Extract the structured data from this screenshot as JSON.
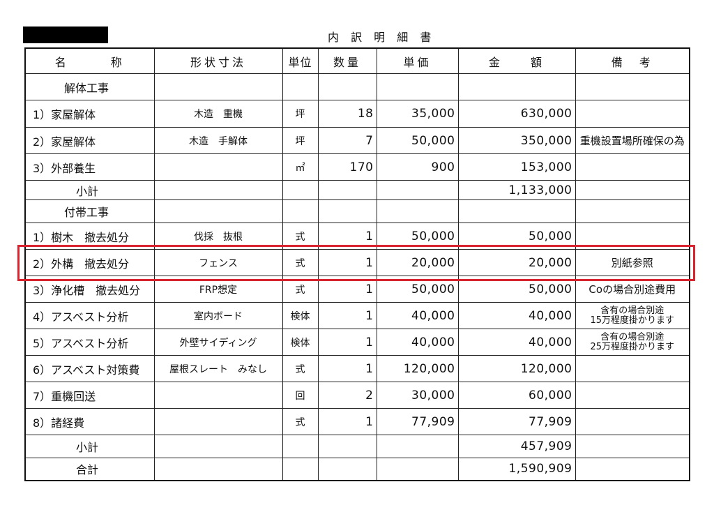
{
  "document": {
    "title": "内 訳 明 細 書",
    "highlight_color": "#d9232e",
    "columns": [
      "名　　　称",
      "形状寸法",
      "単位",
      "数量",
      "単価",
      "金　　額",
      "備　考"
    ],
    "rows": [
      {
        "kind": "section",
        "name": "解体工事",
        "spec": "",
        "unit": "",
        "qty": "",
        "price": "",
        "amount": "",
        "note": ""
      },
      {
        "kind": "item",
        "name": "1）家屋解体",
        "spec": "木造　重機",
        "unit": "坪",
        "qty": "18",
        "price": "35,000",
        "amount": "630,000",
        "note": ""
      },
      {
        "kind": "item",
        "name": "2）家屋解体",
        "spec": "木造　手解体",
        "unit": "坪",
        "qty": "7",
        "price": "50,000",
        "amount": "350,000",
        "note": "重機設置場所確保の為"
      },
      {
        "kind": "item",
        "name": "3）外部養生",
        "spec": "",
        "unit": "㎡",
        "qty": "170",
        "price": "900",
        "amount": "153,000",
        "note": ""
      },
      {
        "kind": "sub",
        "name": "小計",
        "spec": "",
        "unit": "",
        "qty": "",
        "price": "",
        "amount": "1,133,000",
        "note": ""
      },
      {
        "kind": "section",
        "name": "付帯工事",
        "spec": "",
        "unit": "",
        "qty": "",
        "price": "",
        "amount": "",
        "note": ""
      },
      {
        "kind": "item",
        "name": "1）樹木　撤去処分",
        "spec": "伐採　抜根",
        "unit": "式",
        "qty": "1",
        "price": "50,000",
        "amount": "50,000",
        "note": ""
      },
      {
        "kind": "item",
        "name": "2）外構　撤去処分",
        "spec": "フェンス",
        "unit": "式",
        "qty": "1",
        "price": "20,000",
        "amount": "20,000",
        "note": "別紙参照",
        "highlighted": true
      },
      {
        "kind": "item",
        "name": "3）浄化槽　撤去処分",
        "spec": "FRP想定",
        "unit": "式",
        "qty": "1",
        "price": "50,000",
        "amount": "50,000",
        "note": "Coの場合別途費用"
      },
      {
        "kind": "item",
        "name": "4）アスベスト分析",
        "spec": "室内ボード",
        "unit": "検体",
        "qty": "1",
        "price": "40,000",
        "amount": "40,000",
        "note": "含有の場合別途\n15万程度掛かります"
      },
      {
        "kind": "item",
        "name": "5）アスベスト分析",
        "spec": "外壁サイディング",
        "unit": "検体",
        "qty": "1",
        "price": "40,000",
        "amount": "40,000",
        "note": "含有の場合別途\n25万程度掛かります"
      },
      {
        "kind": "item",
        "name": "6）アスベスト対策費",
        "spec": "屋根スレート　みなし",
        "unit": "式",
        "qty": "1",
        "price": "120,000",
        "amount": "120,000",
        "note": ""
      },
      {
        "kind": "item",
        "name": "7）重機回送",
        "spec": "",
        "unit": "回",
        "qty": "2",
        "price": "30,000",
        "amount": "60,000",
        "note": ""
      },
      {
        "kind": "item",
        "name": "8）諸経費",
        "spec": "",
        "unit": "式",
        "qty": "1",
        "price": "77,909",
        "amount": "77,909",
        "note": ""
      },
      {
        "kind": "sub",
        "name": "小計",
        "spec": "",
        "unit": "",
        "qty": "",
        "price": "",
        "amount": "457,909",
        "note": ""
      },
      {
        "kind": "sub",
        "name": "合計",
        "spec": "",
        "unit": "",
        "qty": "",
        "price": "",
        "amount": "1,590,909",
        "note": ""
      }
    ]
  }
}
